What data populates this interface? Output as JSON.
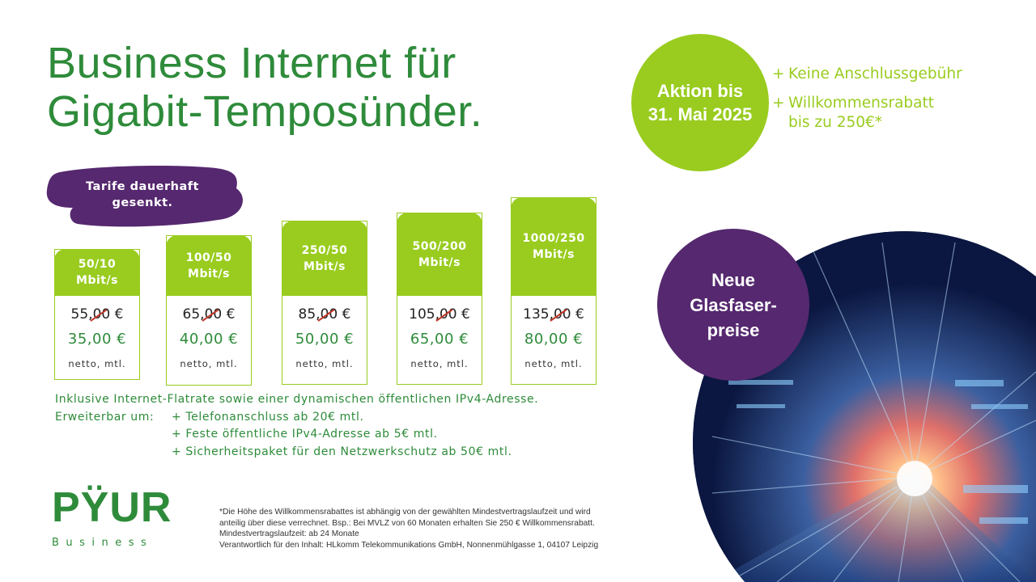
{
  "headline": {
    "line1": "Business Internet für",
    "line2": "Gigabit-Temposünder."
  },
  "promo": {
    "circle_line1": "Aktion bis",
    "circle_line2": "31. Mai 2025",
    "items": [
      {
        "plus": "+",
        "text": "Keine Anschlussgebühr"
      },
      {
        "plus": "+",
        "text": "Willkommensrabatt\nbis zu 250€*"
      }
    ]
  },
  "badge": {
    "line1": "Tarife dauerhaft",
    "line2": "gesenkt."
  },
  "tariffs": [
    {
      "speed_line1": "50/10",
      "speed_line2": "Mbit/s",
      "old_price": "55,00 €",
      "new_price": "35,00 €",
      "note": "netto, mtl."
    },
    {
      "speed_line1": "100/50",
      "speed_line2": "Mbit/s",
      "old_price": "65,00 €",
      "new_price": "40,00 €",
      "note": "netto, mtl."
    },
    {
      "speed_line1": "250/50",
      "speed_line2": "Mbit/s",
      "old_price": "85,00 €",
      "new_price": "50,00 €",
      "note": "netto, mtl."
    },
    {
      "speed_line1": "500/200",
      "speed_line2": "Mbit/s",
      "old_price": "105,00 €",
      "new_price": "65,00 €",
      "note": "netto, mtl."
    },
    {
      "speed_line1": "1000/250",
      "speed_line2": "Mbit/s",
      "old_price": "135,00 €",
      "new_price": "80,00 €",
      "note": "netto, mtl."
    }
  ],
  "info": {
    "line1": "Inklusive Internet-Flatrate sowie einer dynamischen öffentlichen IPv4-Adresse.",
    "label": "Erweiterbar um:",
    "items": [
      "+ Telefonanschluss ab 20€ mtl.",
      "+ Feste öffentliche IPv4-Adresse ab 5€ mtl.",
      "+ Sicherheitspaket für den Netzwerkschutz ab 50€ mtl."
    ]
  },
  "logo": {
    "word": "PŸUR",
    "sub": "Business"
  },
  "footnote": [
    "*Die Höhe des Willkommensrabattes ist abhängig von der gewählten Mindestvertragslaufzeit und wird",
    "anteilig über diese verrechnet. Bsp.: Bei MVLZ von 60 Monaten erhalten Sie 250 € Willkommensrabatt.",
    "Mindestvertragslaufzeit: ab 24 Monate",
    "Verantwortlich für den Inhalt: HLkomm Telekommunikations GmbH, Nonnenmühlgasse 1, 04107 Leipzig"
  ],
  "glasfaser": {
    "line1": "Neue",
    "line2": "Glasfaser-",
    "line3": "preise"
  },
  "colors": {
    "green": "#99cc1f",
    "dark_green": "#2e8b3a",
    "purple": "#55286f",
    "strike": "#c0392b"
  }
}
